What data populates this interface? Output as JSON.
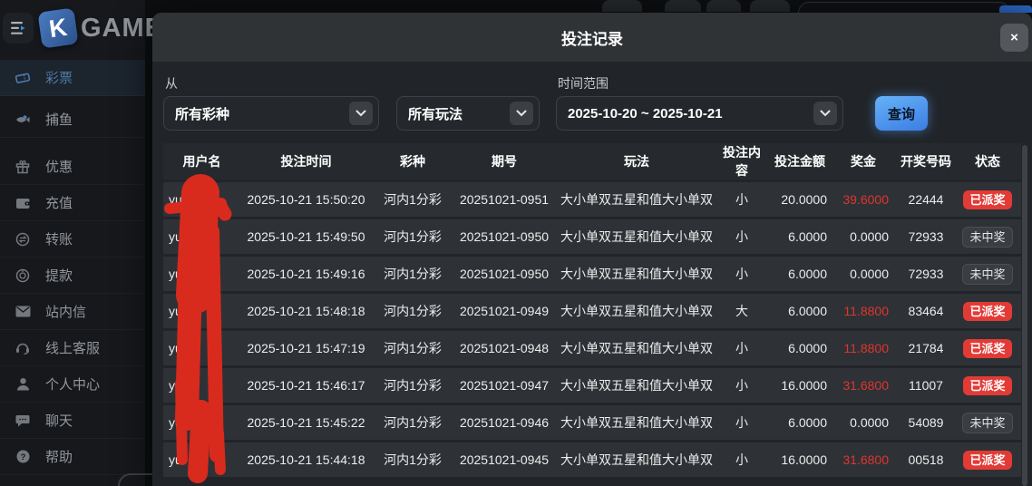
{
  "app": {
    "logo_letter": "K",
    "logo_text": "GAME"
  },
  "sidebar": {
    "items": [
      {
        "label": "彩票",
        "icon": "lottery-ticket",
        "active": true
      },
      {
        "label": "捕鱼",
        "icon": "fish",
        "active": false
      },
      {
        "label": "优惠",
        "icon": "gift",
        "active": false
      },
      {
        "label": "充值",
        "icon": "wallet",
        "active": false
      },
      {
        "label": "转账",
        "icon": "transfer",
        "active": false
      },
      {
        "label": "提款",
        "icon": "withdraw",
        "active": false
      },
      {
        "label": "站内信",
        "icon": "mail",
        "active": false
      },
      {
        "label": "线上客服",
        "icon": "headset",
        "active": false
      },
      {
        "label": "个人中心",
        "icon": "user",
        "active": false
      },
      {
        "label": "聊天",
        "icon": "chat",
        "active": false
      },
      {
        "label": "帮助",
        "icon": "help",
        "active": false
      }
    ]
  },
  "modal": {
    "title": "投注记录",
    "close_label": "×",
    "filters": {
      "from_label": "从",
      "lottery_type_value": "所有彩种",
      "play_type_value": "所有玩法",
      "range_label": "时间范围",
      "range_value": "2025-10-20 ~ 2025-10-21",
      "query_label": "查询"
    },
    "table": {
      "headers": [
        "用户名",
        "投注时间",
        "彩种",
        "期号",
        "玩法",
        "投注内容",
        "投注金额",
        "奖金",
        "开奖号码",
        "状态"
      ],
      "rows": [
        {
          "user": "yu",
          "time": "2025-10-21 15:50:20",
          "lottery": "河内1分彩",
          "issue": "20251021-0951",
          "play": "大小单双五星和值大小单双",
          "content": "小",
          "amount": "20.0000",
          "prize": "39.6000",
          "number": "22444",
          "status": "已派奖",
          "won": true
        },
        {
          "user": "yu",
          "time": "2025-10-21 15:49:50",
          "lottery": "河内1分彩",
          "issue": "20251021-0950",
          "play": "大小单双五星和值大小单双",
          "content": "小",
          "amount": "6.0000",
          "prize": "0.0000",
          "number": "72933",
          "status": "未中奖",
          "won": false
        },
        {
          "user": "yu",
          "time": "2025-10-21 15:49:16",
          "lottery": "河内1分彩",
          "issue": "20251021-0950",
          "play": "大小单双五星和值大小单双",
          "content": "小",
          "amount": "6.0000",
          "prize": "0.0000",
          "number": "72933",
          "status": "未中奖",
          "won": false
        },
        {
          "user": "yu",
          "time": "2025-10-21 15:48:18",
          "lottery": "河内1分彩",
          "issue": "20251021-0949",
          "play": "大小单双五星和值大小单双",
          "content": "大",
          "amount": "6.0000",
          "prize": "11.8800",
          "number": "83464",
          "status": "已派奖",
          "won": true
        },
        {
          "user": "yu",
          "time": "2025-10-21 15:47:19",
          "lottery": "河内1分彩",
          "issue": "20251021-0948",
          "play": "大小单双五星和值大小单双",
          "content": "小",
          "amount": "6.0000",
          "prize": "11.8800",
          "number": "21784",
          "status": "已派奖",
          "won": true
        },
        {
          "user": "yu",
          "time": "2025-10-21 15:46:17",
          "lottery": "河内1分彩",
          "issue": "20251021-0947",
          "play": "大小单双五星和值大小单双",
          "content": "小",
          "amount": "16.0000",
          "prize": "31.6800",
          "number": "11007",
          "status": "已派奖",
          "won": true
        },
        {
          "user": "yu",
          "time": "2025-10-21 15:45:22",
          "lottery": "河内1分彩",
          "issue": "20251021-0946",
          "play": "大小单双五星和值大小单双",
          "content": "小",
          "amount": "6.0000",
          "prize": "0.0000",
          "number": "54089",
          "status": "未中奖",
          "won": false
        },
        {
          "user": "yu",
          "time": "2025-10-21 15:44:18",
          "lottery": "河内1分彩",
          "issue": "20251021-0945",
          "play": "大小单双五星和值大小单双",
          "content": "小",
          "amount": "16.0000",
          "prize": "31.6800",
          "number": "00518",
          "status": "已派奖",
          "won": true
        }
      ]
    }
  },
  "colors": {
    "accent_blue": "#4da0f5",
    "active_item_blue": "#4d7aa6",
    "win_badge_red": "#e23b36",
    "prize_red": "#e0342e",
    "redaction_red": "#d92a1e"
  }
}
